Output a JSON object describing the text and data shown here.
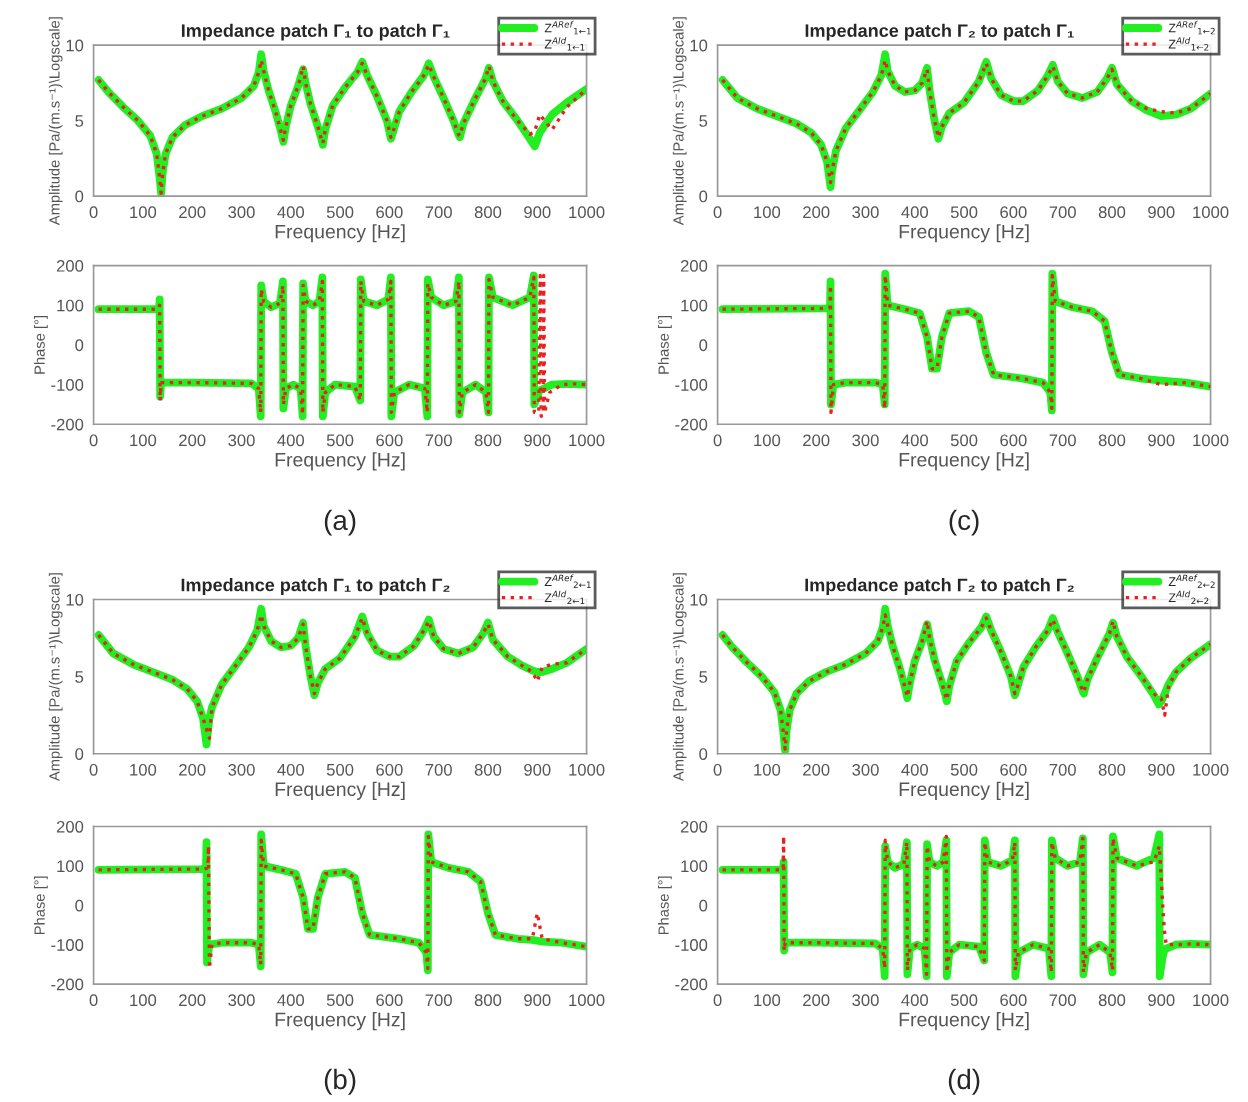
{
  "chart_data": [
    {
      "type": "line",
      "title": "Impedance patch Γ₁ to patch Γ₁",
      "xlabel": "Frequency [Hz]",
      "ylabel": "Amplitude [Pa/(m.s⁻¹)\\Logscale]",
      "xlim": [
        0,
        1000
      ],
      "xticks": [
        0,
        100,
        200,
        300,
        400,
        500,
        600,
        700,
        800,
        900,
        1000
      ],
      "ylim": [
        0,
        10
      ],
      "yticks": [
        0,
        5,
        10
      ],
      "legend": "top right",
      "grid": false,
      "x": [
        10,
        30,
        60,
        90,
        115,
        128,
        134,
        137,
        140,
        146,
        160,
        185,
        220,
        260,
        300,
        325,
        335,
        340,
        345,
        355,
        370,
        380,
        385,
        390,
        400,
        415,
        425,
        430,
        440,
        455,
        462,
        465,
        470,
        485,
        510,
        535,
        545,
        555,
        575,
        595,
        603,
        607,
        620,
        645,
        670,
        680,
        690,
        710,
        730,
        740,
        743,
        750,
        770,
        795,
        802,
        810,
        830,
        860,
        885,
        895,
        905,
        930,
        960,
        1000
      ],
      "series": [
        {
          "name": "Z$^{ARef}$$_{1←1}$",
          "color": "#22ee22",
          "line_style": "solid",
          "values": [
            7.7,
            6.9,
            5.9,
            5.0,
            4.0,
            2.8,
            1.2,
            0.2,
            1.5,
            2.8,
            3.9,
            4.7,
            5.3,
            5.8,
            6.5,
            7.3,
            8.2,
            9.4,
            8.3,
            7.0,
            5.5,
            4.3,
            3.6,
            4.6,
            6.0,
            7.3,
            8.4,
            7.5,
            6.1,
            4.6,
            3.8,
            3.4,
            4.4,
            6.0,
            7.2,
            8.2,
            8.9,
            8.0,
            6.6,
            5.0,
            3.8,
            4.2,
            5.6,
            6.9,
            8.0,
            8.8,
            7.9,
            6.5,
            5.0,
            4.1,
            3.9,
            4.8,
            6.2,
            7.8,
            8.5,
            7.6,
            6.3,
            5.0,
            3.8,
            3.3,
            4.2,
            5.4,
            6.2,
            7.1
          ]
        },
        {
          "name": "Z$^{AId}$$_{1←1}$",
          "color": "#e82020",
          "line_style": "dotted",
          "values": [
            7.7,
            6.9,
            5.9,
            5.0,
            4.0,
            2.8,
            1.2,
            0.2,
            1.5,
            2.8,
            3.9,
            4.7,
            5.3,
            5.8,
            6.5,
            7.3,
            8.2,
            9.0,
            8.3,
            7.0,
            5.5,
            4.3,
            3.7,
            4.6,
            6.0,
            7.3,
            8.6,
            7.5,
            6.1,
            4.6,
            3.8,
            3.5,
            4.4,
            6.0,
            7.2,
            8.2,
            8.8,
            8.0,
            6.6,
            5.0,
            3.9,
            4.2,
            5.6,
            6.9,
            8.0,
            8.7,
            7.9,
            6.5,
            5.0,
            4.1,
            4.0,
            4.8,
            6.2,
            7.8,
            8.6,
            7.6,
            6.3,
            5.0,
            4.1,
            4.3,
            5.4,
            4.4,
            5.9,
            7.1
          ]
        }
      ]
    },
    {
      "type": "line",
      "title": "Impedance patch Γ₂ to patch Γ₁",
      "xlabel": "Frequency [Hz]",
      "ylabel": "Amplitude [Pa/(m.s⁻¹)\\Logscale]",
      "xlim": [
        0,
        1000
      ],
      "xticks": [
        0,
        100,
        200,
        300,
        400,
        500,
        600,
        700,
        800,
        900,
        1000
      ],
      "ylim": [
        0,
        10
      ],
      "yticks": [
        0,
        5,
        10
      ],
      "legend": "top right",
      "grid": false,
      "x": [
        10,
        40,
        80,
        120,
        160,
        190,
        210,
        222,
        229,
        232,
        240,
        260,
        290,
        315,
        332,
        340,
        345,
        360,
        380,
        400,
        415,
        425,
        430,
        440,
        448,
        455,
        470,
        500,
        530,
        545,
        555,
        575,
        600,
        620,
        650,
        670,
        680,
        690,
        710,
        740,
        770,
        790,
        800,
        810,
        840,
        870,
        900,
        930,
        960,
        1000
      ],
      "series": [
        {
          "name": "Z$^{ARef}$$_{1←2}$",
          "color": "#22ee22",
          "line_style": "solid",
          "values": [
            7.7,
            6.5,
            5.8,
            5.3,
            4.8,
            4.2,
            3.4,
            2.3,
            0.6,
            1.6,
            3.0,
            4.5,
            5.8,
            6.9,
            8.0,
            9.4,
            8.3,
            7.3,
            6.9,
            7.0,
            7.5,
            8.5,
            7.0,
            5.0,
            3.8,
            4.6,
            5.5,
            6.2,
            7.6,
            8.9,
            7.8,
            6.7,
            6.3,
            6.3,
            7.0,
            8.0,
            8.7,
            7.6,
            6.8,
            6.5,
            6.9,
            7.8,
            8.5,
            7.4,
            6.3,
            5.7,
            5.3,
            5.4,
            5.8,
            6.8
          ]
        },
        {
          "name": "Z$^{AId}$$_{1←2}$",
          "color": "#e82020",
          "line_style": "dotted",
          "values": [
            7.7,
            6.5,
            5.8,
            5.3,
            4.8,
            4.2,
            3.4,
            2.3,
            0.9,
            1.6,
            3.0,
            4.5,
            5.8,
            6.9,
            8.0,
            9.0,
            8.3,
            7.3,
            6.9,
            7.0,
            7.5,
            8.4,
            7.0,
            5.0,
            3.9,
            4.6,
            5.5,
            6.2,
            7.6,
            8.8,
            7.8,
            6.7,
            6.3,
            6.3,
            7.0,
            8.0,
            8.6,
            7.6,
            6.8,
            6.5,
            6.9,
            7.8,
            8.4,
            7.4,
            6.3,
            5.8,
            5.6,
            5.5,
            5.8,
            6.8
          ]
        }
      ]
    },
    {
      "type": "line",
      "xlabel": "Frequency [Hz]",
      "ylabel": "Phase [°]",
      "xlim": [
        0,
        1000
      ],
      "xticks": [
        0,
        100,
        200,
        300,
        400,
        500,
        600,
        700,
        800,
        900,
        1000
      ],
      "ylim": [
        -200,
        200
      ],
      "yticks": [
        -200,
        -100,
        0,
        100,
        200
      ],
      "grid": false,
      "annotations": [
        "(a)"
      ],
      "x": [
        10,
        130,
        133,
        134,
        135,
        137,
        200,
        320,
        335,
        339,
        340,
        345,
        360,
        378,
        384,
        385,
        390,
        405,
        420,
        424,
        425,
        430,
        445,
        458,
        464,
        465,
        470,
        490,
        530,
        541,
        542,
        548,
        575,
        598,
        603,
        604,
        610,
        640,
        672,
        677,
        678,
        685,
        710,
        735,
        741,
        742,
        748,
        775,
        796,
        801,
        802,
        810,
        850,
        885,
        893,
        894,
        905,
        930,
        960,
        1000
      ],
      "series": [
        {
          "color": "#22ee22",
          "line_style": "solid",
          "values": [
            90,
            90,
            95,
            115,
            -130,
            -95,
            -95,
            -97,
            -110,
            -180,
            150,
            110,
            95,
            105,
            160,
            -160,
            -110,
            -100,
            -110,
            -180,
            155,
            110,
            100,
            110,
            170,
            -180,
            -120,
            -100,
            -105,
            -140,
            165,
            110,
            100,
            115,
            170,
            -180,
            -120,
            -100,
            -110,
            -180,
            165,
            120,
            100,
            110,
            170,
            -175,
            -120,
            -100,
            -120,
            -170,
            170,
            120,
            100,
            120,
            175,
            -150,
            -115,
            -100,
            -98,
            -100
          ]
        },
        {
          "color": "#e82020",
          "line_style": "dotted",
          "x": [
            10,
            130,
            133,
            134,
            135,
            137,
            200,
            320,
            335,
            339,
            340,
            345,
            360,
            378,
            384,
            385,
            390,
            405,
            420,
            424,
            425,
            430,
            445,
            458,
            464,
            465,
            470,
            490,
            530,
            541,
            542,
            548,
            575,
            598,
            603,
            604,
            610,
            640,
            672,
            677,
            678,
            685,
            710,
            735,
            741,
            742,
            748,
            775,
            796,
            801,
            802,
            810,
            850,
            885,
            893,
            894,
            903,
            906,
            908,
            912,
            913,
            915,
            925,
            950,
            975,
            1000
          ],
          "values": [
            90,
            90,
            95,
            100,
            -140,
            -95,
            -95,
            -97,
            -110,
            -170,
            140,
            110,
            95,
            105,
            150,
            -150,
            -110,
            -100,
            -110,
            -175,
            150,
            110,
            100,
            110,
            160,
            -170,
            -120,
            -100,
            -105,
            -140,
            160,
            110,
            100,
            115,
            160,
            -170,
            -120,
            -100,
            -110,
            -170,
            155,
            120,
            100,
            110,
            160,
            -170,
            -120,
            -100,
            -120,
            -170,
            165,
            120,
            100,
            120,
            170,
            -170,
            -170,
            175,
            -180,
            -175,
            175,
            -170,
            -120,
            -100,
            -98,
            -100
          ]
        }
      ]
    },
    {
      "type": "line",
      "xlabel": "Frequency [Hz]",
      "ylabel": "Phase [°]",
      "xlim": [
        0,
        1000
      ],
      "xticks": [
        0,
        100,
        200,
        300,
        400,
        500,
        600,
        700,
        800,
        900,
        1000
      ],
      "ylim": [
        -200,
        200
      ],
      "yticks": [
        -200,
        -100,
        0,
        100,
        200
      ],
      "grid": false,
      "annotations": [
        "(c)"
      ],
      "x": [
        10,
        220,
        228,
        229,
        230,
        235,
        260,
        320,
        335,
        339,
        340,
        345,
        380,
        410,
        425,
        435,
        445,
        455,
        470,
        510,
        530,
        545,
        560,
        620,
        660,
        675,
        678,
        679,
        685,
        720,
        760,
        785,
        800,
        815,
        860,
        900,
        950,
        1000
      ],
      "series": [
        {
          "color": "#22ee22",
          "line_style": "solid",
          "values": [
            90,
            92,
            95,
            160,
            -150,
            -100,
            -95,
            -95,
            -100,
            -150,
            180,
            100,
            90,
            80,
            20,
            -60,
            -60,
            20,
            80,
            85,
            70,
            -20,
            -75,
            -85,
            -95,
            -120,
            -165,
            180,
            110,
            95,
            85,
            60,
            -20,
            -75,
            -85,
            -90,
            -95,
            -105
          ]
        },
        {
          "color": "#e82020",
          "line_style": "dotted",
          "values": [
            90,
            92,
            95,
            150,
            -170,
            -100,
            -95,
            -95,
            -100,
            -160,
            175,
            100,
            90,
            80,
            20,
            -60,
            -60,
            20,
            80,
            85,
            70,
            -20,
            -75,
            -85,
            -95,
            -120,
            -160,
            175,
            110,
            95,
            85,
            60,
            -20,
            -75,
            -85,
            -100,
            -95,
            -105
          ]
        }
      ]
    },
    {
      "type": "line",
      "title": "Impedance patch Γ₁ to patch Γ₂",
      "xlabel": "Frequency [Hz]",
      "ylabel": "Amplitude [Pa/(m.s⁻¹)\\Logscale]",
      "xlim": [
        0,
        1000
      ],
      "xticks": [
        0,
        100,
        200,
        300,
        400,
        500,
        600,
        700,
        800,
        900,
        1000
      ],
      "ylim": [
        0,
        10
      ],
      "yticks": [
        0,
        5,
        10
      ],
      "legend": "top right",
      "grid": false,
      "x": [
        10,
        40,
        80,
        120,
        160,
        190,
        210,
        222,
        229,
        235,
        240,
        260,
        290,
        315,
        332,
        340,
        345,
        360,
        380,
        400,
        415,
        425,
        430,
        440,
        448,
        455,
        470,
        500,
        530,
        545,
        555,
        575,
        600,
        620,
        650,
        670,
        680,
        690,
        710,
        740,
        770,
        790,
        800,
        810,
        840,
        870,
        890,
        900,
        910,
        930,
        960,
        1000
      ],
      "series": [
        {
          "name": "Z$^{ARef}$$_{2←1}$",
          "color": "#22ee22",
          "line_style": "solid",
          "values": [
            7.7,
            6.5,
            5.8,
            5.3,
            4.8,
            4.2,
            3.4,
            2.3,
            0.6,
            2.3,
            3.0,
            4.5,
            5.8,
            6.9,
            8.0,
            9.4,
            8.3,
            7.3,
            6.9,
            7.0,
            7.5,
            8.5,
            7.0,
            5.0,
            3.8,
            4.6,
            5.5,
            6.2,
            7.6,
            8.9,
            7.8,
            6.7,
            6.3,
            6.3,
            7.0,
            8.0,
            8.7,
            7.6,
            6.8,
            6.5,
            6.9,
            7.8,
            8.5,
            7.4,
            6.3,
            5.7,
            5.4,
            5.3,
            5.3,
            5.5,
            5.9,
            6.8
          ]
        },
        {
          "name": "Z$^{AId}$$_{2←1}$",
          "color": "#e82020",
          "line_style": "dotted",
          "values": [
            7.7,
            6.5,
            5.8,
            5.3,
            4.8,
            4.2,
            3.4,
            2.3,
            1.6,
            1.0,
            3.0,
            4.5,
            5.8,
            6.9,
            8.0,
            9.0,
            8.3,
            7.3,
            6.9,
            7.0,
            7.5,
            8.4,
            7.0,
            5.0,
            3.9,
            4.6,
            5.5,
            6.2,
            7.6,
            8.8,
            7.8,
            6.7,
            6.3,
            6.3,
            7.0,
            8.0,
            8.6,
            7.6,
            6.8,
            6.5,
            6.9,
            7.8,
            8.4,
            7.4,
            6.3,
            5.7,
            5.3,
            4.7,
            5.6,
            5.8,
            5.9,
            6.8
          ]
        }
      ]
    },
    {
      "type": "line",
      "title": "Impedance patch Γ₂ to patch Γ₂",
      "xlabel": "Frequency [Hz]",
      "ylabel": "Amplitude [Pa/(m.s⁻¹)\\Logscale]",
      "xlim": [
        0,
        1000
      ],
      "xticks": [
        0,
        100,
        200,
        300,
        400,
        500,
        600,
        700,
        800,
        900,
        1000
      ],
      "ylim": [
        0,
        10
      ],
      "yticks": [
        0,
        5,
        10
      ],
      "legend": "top right",
      "grid": false,
      "x": [
        10,
        30,
        60,
        90,
        115,
        128,
        134,
        137,
        140,
        146,
        160,
        185,
        220,
        260,
        300,
        325,
        335,
        340,
        345,
        355,
        370,
        380,
        385,
        390,
        400,
        415,
        425,
        430,
        440,
        455,
        462,
        465,
        470,
        485,
        510,
        535,
        545,
        555,
        575,
        595,
        603,
        607,
        620,
        645,
        670,
        680,
        690,
        710,
        730,
        740,
        743,
        750,
        770,
        795,
        802,
        810,
        830,
        860,
        885,
        895,
        900,
        907,
        915,
        930,
        960,
        1000
      ],
      "series": [
        {
          "name": "Z$^{ARef}$$_{2←2}$",
          "color": "#22ee22",
          "line_style": "solid",
          "values": [
            7.7,
            6.9,
            5.9,
            5.0,
            4.0,
            2.8,
            1.2,
            0.2,
            1.5,
            2.8,
            3.9,
            4.7,
            5.3,
            5.8,
            6.5,
            7.3,
            8.2,
            9.4,
            8.3,
            7.0,
            5.5,
            4.3,
            3.6,
            4.6,
            6.0,
            7.3,
            8.4,
            7.5,
            6.1,
            4.6,
            3.8,
            3.4,
            4.4,
            6.0,
            7.2,
            8.2,
            8.9,
            8.0,
            6.6,
            5.0,
            3.8,
            4.2,
            5.6,
            6.9,
            8.0,
            8.8,
            7.9,
            6.5,
            5.0,
            4.1,
            3.9,
            4.8,
            6.2,
            7.8,
            8.5,
            7.6,
            6.3,
            5.0,
            3.8,
            3.2,
            3.4,
            3.9,
            4.5,
            5.3,
            6.2,
            7.1
          ]
        },
        {
          "name": "Z$^{AId}$$_{2←2}$",
          "color": "#e82020",
          "line_style": "dotted",
          "values": [
            7.7,
            6.9,
            5.9,
            5.0,
            4.0,
            2.8,
            1.2,
            0.3,
            1.5,
            2.8,
            3.9,
            4.7,
            5.3,
            5.8,
            6.5,
            7.3,
            8.2,
            9.0,
            8.3,
            7.0,
            5.5,
            4.3,
            3.7,
            4.6,
            6.0,
            7.3,
            8.6,
            7.5,
            6.1,
            4.6,
            3.8,
            3.5,
            4.4,
            6.0,
            7.2,
            8.2,
            8.8,
            8.0,
            6.6,
            5.0,
            3.9,
            4.2,
            5.6,
            6.9,
            8.0,
            8.7,
            7.9,
            6.5,
            5.0,
            4.1,
            4.0,
            4.8,
            6.2,
            7.8,
            8.6,
            7.6,
            6.3,
            5.0,
            3.9,
            3.6,
            3.6,
            2.5,
            4.4,
            5.3,
            6.2,
            7.1
          ]
        }
      ]
    },
    {
      "type": "line",
      "xlabel": "Frequency [Hz]",
      "ylabel": "Phase [°]",
      "xlim": [
        0,
        1000
      ],
      "xticks": [
        0,
        100,
        200,
        300,
        400,
        500,
        600,
        700,
        800,
        900,
        1000
      ],
      "ylim": [
        -200,
        200
      ],
      "yticks": [
        -200,
        -100,
        0,
        100,
        200
      ],
      "grid": false,
      "annotations": [
        "(b)"
      ],
      "x": [
        10,
        220,
        228,
        229,
        230,
        235,
        260,
        320,
        335,
        339,
        340,
        345,
        380,
        410,
        425,
        435,
        445,
        455,
        470,
        510,
        530,
        545,
        560,
        620,
        660,
        675,
        678,
        679,
        685,
        720,
        760,
        785,
        800,
        815,
        860,
        890,
        900,
        910,
        950,
        1000
      ],
      "series": [
        {
          "color": "#22ee22",
          "line_style": "solid",
          "values": [
            90,
            92,
            95,
            160,
            -145,
            -100,
            -95,
            -95,
            -100,
            -155,
            180,
            100,
            90,
            80,
            20,
            -60,
            -60,
            20,
            80,
            85,
            70,
            -20,
            -75,
            -85,
            -95,
            -120,
            -165,
            180,
            110,
            95,
            85,
            60,
            -20,
            -75,
            -85,
            -88,
            -90,
            -92,
            -95,
            -105
          ]
        },
        {
          "color": "#e82020",
          "line_style": "dotted",
          "x": [
            10,
            225,
            232,
            233,
            235,
            240,
            260,
            320,
            335,
            339,
            340,
            345,
            380,
            410,
            425,
            435,
            445,
            455,
            470,
            510,
            530,
            545,
            560,
            620,
            660,
            675,
            678,
            679,
            685,
            720,
            760,
            785,
            800,
            815,
            860,
            890,
            900,
            910,
            950,
            1000
          ],
          "values": [
            90,
            92,
            95,
            150,
            -160,
            -100,
            -95,
            -95,
            -100,
            -150,
            165,
            100,
            90,
            80,
            20,
            -60,
            -60,
            20,
            80,
            85,
            70,
            -20,
            -75,
            -85,
            -95,
            -120,
            -160,
            175,
            110,
            95,
            85,
            60,
            -20,
            -75,
            -85,
            -85,
            -20,
            -85,
            -95,
            -105
          ]
        }
      ]
    },
    {
      "type": "line",
      "xlabel": "Frequency [Hz]",
      "ylabel": "Phase [°]",
      "xlim": [
        0,
        1000
      ],
      "xticks": [
        0,
        100,
        200,
        300,
        400,
        500,
        600,
        700,
        800,
        900,
        1000
      ],
      "ylim": [
        -200,
        200
      ],
      "yticks": [
        -200,
        -100,
        0,
        100,
        200
      ],
      "grid": false,
      "annotations": [
        "(d)"
      ],
      "x": [
        10,
        130,
        133,
        134,
        135,
        137,
        200,
        320,
        335,
        339,
        340,
        345,
        360,
        378,
        384,
        385,
        390,
        405,
        420,
        424,
        425,
        430,
        445,
        458,
        464,
        465,
        470,
        490,
        530,
        541,
        542,
        548,
        575,
        598,
        603,
        604,
        610,
        640,
        672,
        677,
        678,
        685,
        710,
        735,
        741,
        742,
        748,
        775,
        796,
        801,
        802,
        810,
        850,
        885,
        896,
        897,
        903,
        906,
        910,
        930,
        960,
        1000
      ],
      "series": [
        {
          "color": "#22ee22",
          "line_style": "solid",
          "values": [
            90,
            90,
            95,
            110,
            -115,
            -95,
            -95,
            -97,
            -110,
            -180,
            150,
            110,
            95,
            105,
            160,
            -175,
            -110,
            -100,
            -110,
            -180,
            155,
            110,
            100,
            110,
            165,
            -180,
            -120,
            -100,
            -105,
            -140,
            165,
            110,
            100,
            115,
            165,
            -180,
            -120,
            -100,
            -110,
            -180,
            165,
            120,
            100,
            110,
            170,
            -175,
            -120,
            -100,
            -120,
            -170,
            175,
            120,
            100,
            120,
            180,
            -180,
            -130,
            -115,
            -110,
            -100,
            -98,
            -100
          ]
        },
        {
          "color": "#e82020",
          "line_style": "dotted",
          "values": [
            90,
            90,
            95,
            175,
            -115,
            -95,
            -95,
            -97,
            -110,
            -160,
            165,
            110,
            95,
            105,
            160,
            -165,
            -110,
            -100,
            -110,
            -175,
            150,
            110,
            100,
            110,
            175,
            -170,
            -120,
            -100,
            -105,
            -140,
            160,
            110,
            100,
            115,
            160,
            -165,
            -120,
            -100,
            -110,
            -170,
            160,
            120,
            100,
            110,
            170,
            -170,
            -120,
            -100,
            -120,
            -165,
            170,
            120,
            100,
            110,
            150,
            130,
            0,
            -60,
            -100,
            -100,
            -98,
            -100
          ]
        }
      ]
    }
  ]
}
